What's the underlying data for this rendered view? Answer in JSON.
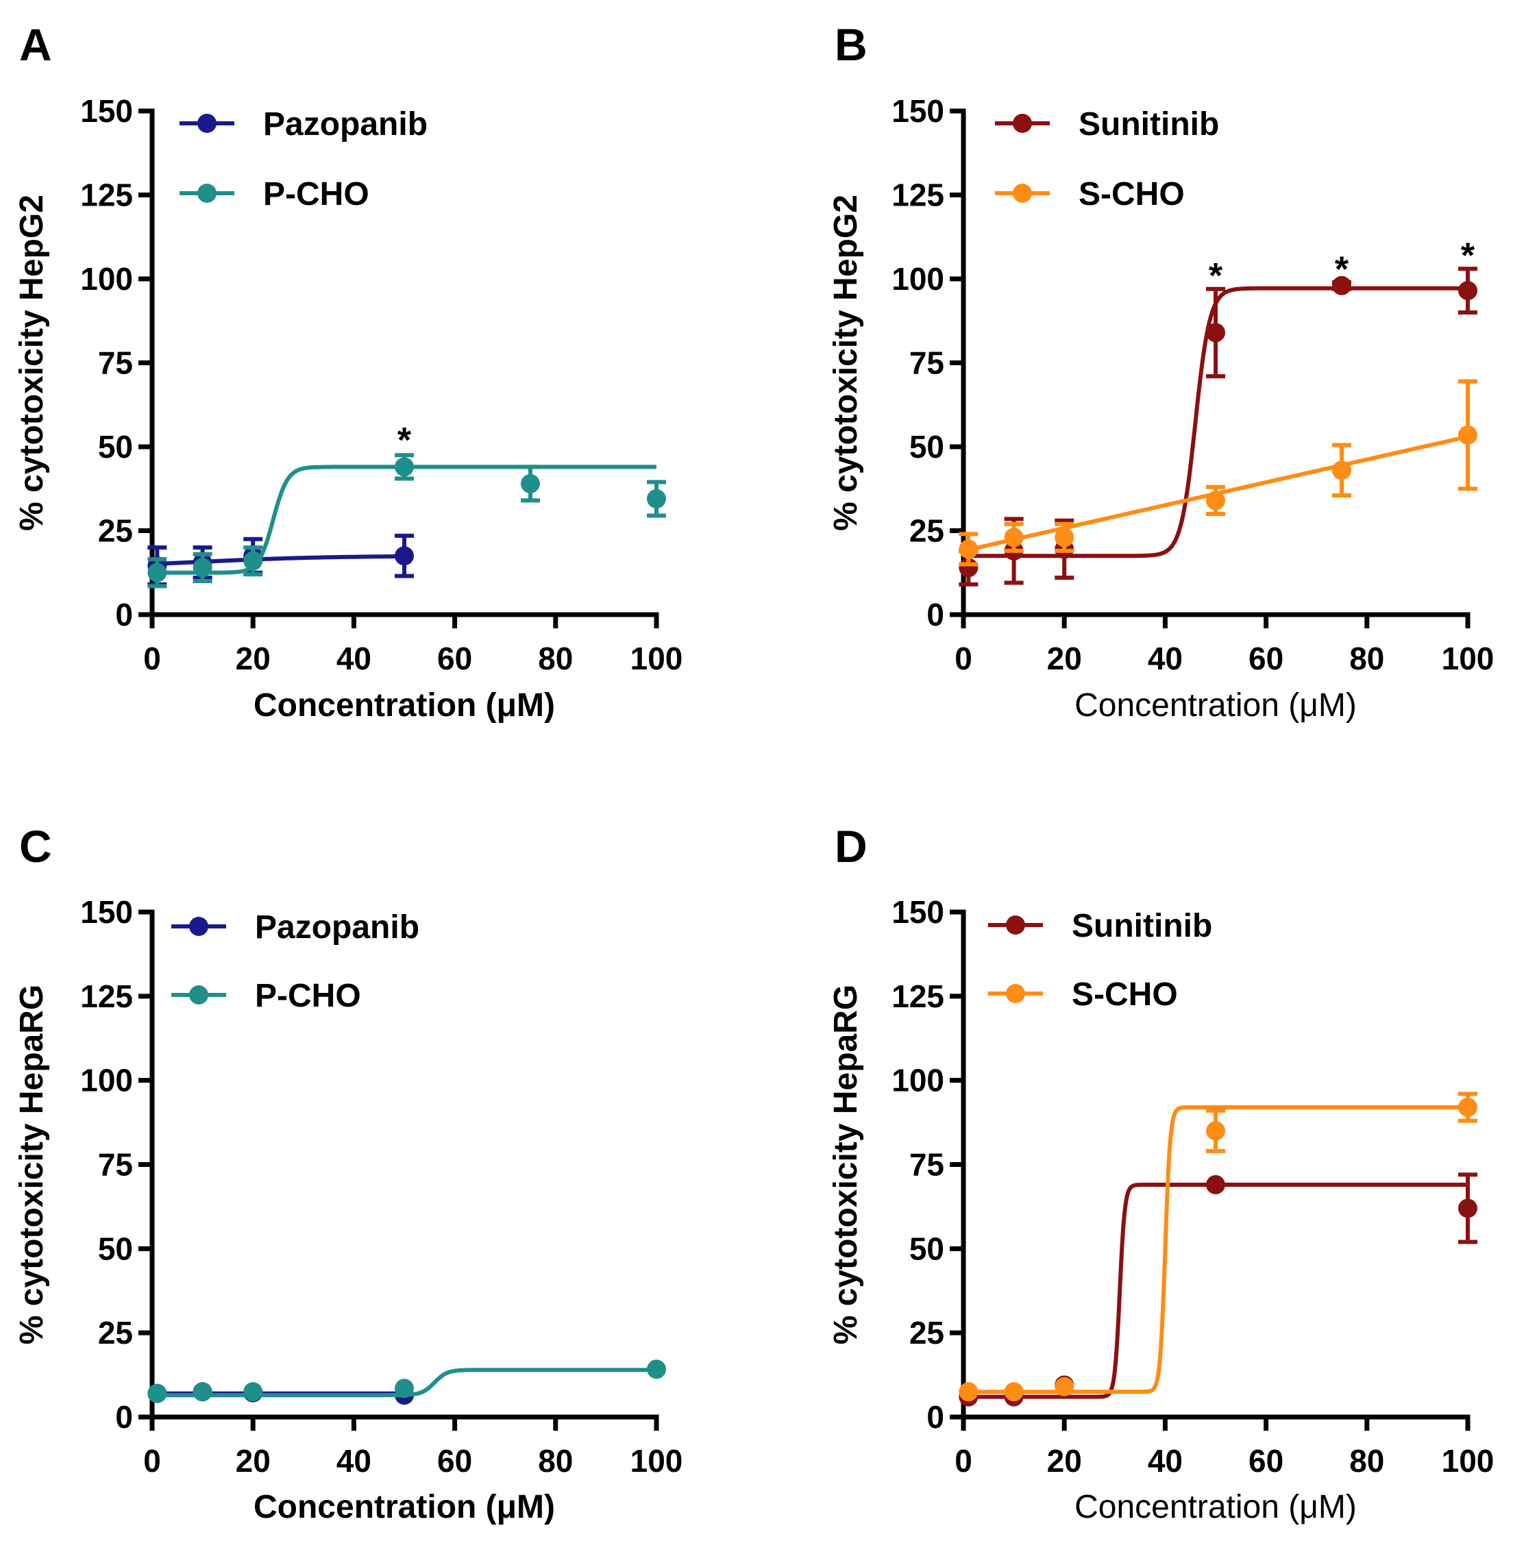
{
  "chart_data": [
    {
      "panel": "A",
      "type": "line",
      "xlabel": "Concentration (μM)",
      "ylabel": "% cytotoxicity HepG2",
      "xlim": [
        0,
        100
      ],
      "ylim": [
        0,
        150
      ],
      "xticks": [
        "0",
        "20",
        "40",
        "60",
        "80",
        "100"
      ],
      "yticks": [
        "0",
        "25",
        "50",
        "75",
        "100",
        "125",
        "150"
      ],
      "series": [
        {
          "name": "Pazopanib",
          "color": "#1a1a8c",
          "x": [
            1,
            10,
            20,
            50
          ],
          "y": [
            14.5,
            15.5,
            17.5,
            17.5
          ],
          "err": [
            5.5,
            4.5,
            5,
            6
          ],
          "fit": {
            "bottom": 14,
            "top": 17.5,
            "ec50": 10,
            "slope": 0.08
          }
        },
        {
          "name": "P-CHO",
          "color": "#1f8f8a",
          "x": [
            1,
            10,
            20,
            50,
            75,
            100
          ],
          "y": [
            12.5,
            14,
            16,
            44,
            39,
            34.5
          ],
          "err": [
            4,
            4,
            4,
            3.5,
            5,
            5
          ],
          "fit": {
            "bottom": 12.5,
            "top": 44,
            "ec50": 24,
            "slope": 0.7
          }
        }
      ],
      "stars": [
        {
          "x": 50,
          "y": 52
        }
      ]
    },
    {
      "panel": "B",
      "type": "line",
      "xlabel": "Concentration (μM)",
      "ylabel": "% cytotoxicity HepG2",
      "xlim": [
        0,
        100
      ],
      "ylim": [
        0,
        150
      ],
      "xticks": [
        "0",
        "20",
        "40",
        "60",
        "80",
        "100"
      ],
      "yticks": [
        "0",
        "25",
        "50",
        "75",
        "100",
        "125",
        "150"
      ],
      "series": [
        {
          "name": "Sunitinib",
          "color": "#8b1010",
          "x": [
            1,
            10,
            20,
            50,
            75,
            100
          ],
          "y": [
            14,
            19,
            19.5,
            84,
            98,
            96.5
          ],
          "err": [
            5,
            9.5,
            8.5,
            13,
            1,
            6.5
          ],
          "fit": {
            "bottom": 17.5,
            "top": 97.2,
            "ec50": 46,
            "slope": 0.7
          }
        },
        {
          "name": "S-CHO",
          "color": "#ff8c14",
          "x": [
            1,
            10,
            20,
            50,
            75,
            100
          ],
          "y": [
            19.5,
            23,
            23,
            34,
            43,
            53.5
          ],
          "err": [
            4.5,
            4,
            4,
            4,
            7.5,
            16
          ],
          "fit": {
            "linear": [
              19,
              0.34
            ]
          }
        }
      ],
      "stars": [
        {
          "x": 50,
          "y": 101
        },
        {
          "x": 75,
          "y": 103
        },
        {
          "x": 100,
          "y": 107
        }
      ]
    },
    {
      "panel": "C",
      "type": "line",
      "xlabel": "Concentration (μM)",
      "ylabel": "% cytotoxicity HepaRG",
      "xlim": [
        0,
        100
      ],
      "ylim": [
        0,
        150
      ],
      "xticks": [
        "0",
        "20",
        "40",
        "60",
        "80",
        "100"
      ],
      "yticks": [
        "0",
        "25",
        "50",
        "75",
        "100",
        "125",
        "150"
      ],
      "series": [
        {
          "name": "Pazopanib",
          "color": "#1a1a8c",
          "x": [
            1,
            10,
            20,
            50
          ],
          "y": [
            7,
            7.5,
            7.2,
            6.5
          ],
          "err": [
            0,
            0,
            0,
            0
          ],
          "fit": {
            "bottom": 7,
            "top": 7,
            "ec50": 30,
            "slope": 0.5
          }
        },
        {
          "name": "P-CHO",
          "color": "#1f8f8a",
          "x": [
            1,
            10,
            20,
            50,
            100
          ],
          "y": [
            7,
            7.5,
            7.5,
            8.5,
            14.2
          ],
          "err": [
            0,
            0,
            0,
            0,
            0
          ],
          "fit": {
            "bottom": 6.5,
            "top": 14,
            "ec50": 56,
            "slope": 0.8
          }
        }
      ],
      "stars": []
    },
    {
      "panel": "D",
      "type": "line",
      "xlabel": "Concentration (μM)",
      "ylabel": "% cytotoxicity HepaRG",
      "xlim": [
        0,
        100
      ],
      "ylim": [
        0,
        150
      ],
      "xticks": [
        "0",
        "20",
        "40",
        "60",
        "80",
        "100"
      ],
      "yticks": [
        "0",
        "25",
        "50",
        "75",
        "100",
        "125",
        "150"
      ],
      "series": [
        {
          "name": "Sunitinib",
          "color": "#8b1010",
          "x": [
            1,
            10,
            20,
            50,
            100
          ],
          "y": [
            6,
            6,
            9.5,
            69,
            62
          ],
          "err": [
            0,
            0,
            0,
            0,
            10
          ],
          "fit": {
            "bottom": 6,
            "top": 69,
            "ec50": 31,
            "slope": 2.0
          }
        },
        {
          "name": "S-CHO",
          "color": "#ff8c14",
          "x": [
            1,
            10,
            20,
            50,
            100
          ],
          "y": [
            7.5,
            7.5,
            9,
            85,
            92
          ],
          "err": [
            0,
            0,
            0,
            6,
            4
          ],
          "fit": {
            "bottom": 7.5,
            "top": 92,
            "ec50": 40,
            "slope": 2.0
          }
        }
      ],
      "stars": []
    }
  ]
}
